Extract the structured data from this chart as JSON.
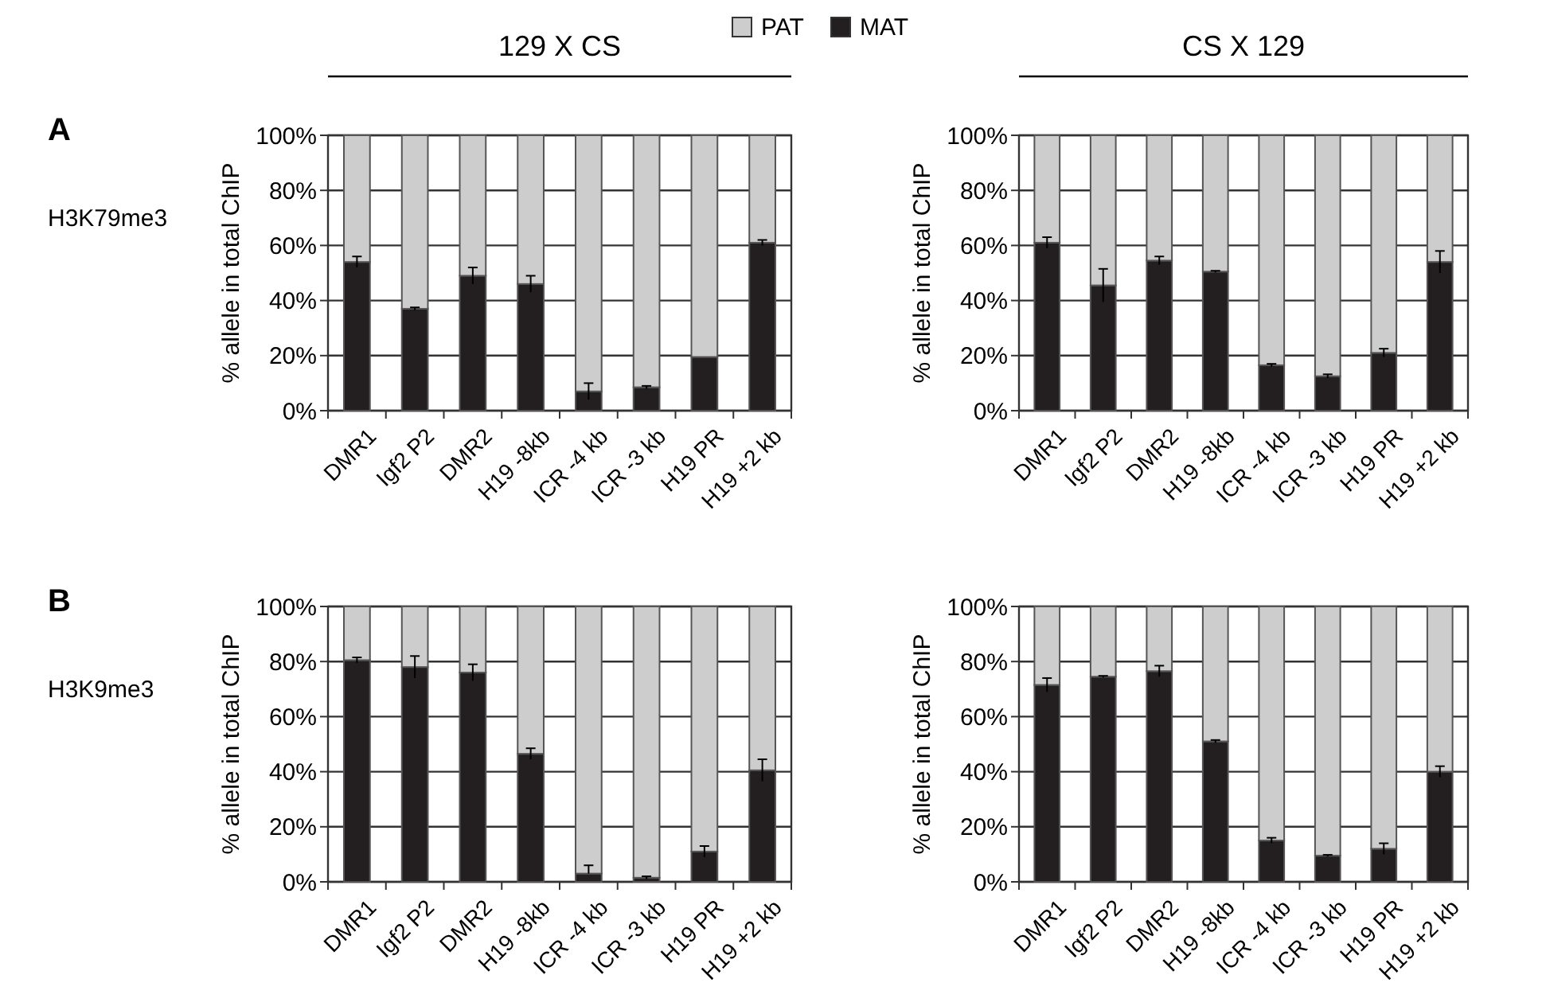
{
  "chart_data": [
    {
      "type": "bar",
      "title": "129 X CS",
      "ylabel": "% allele in total ChIP",
      "annotations": [
        "A",
        "H3K79me3"
      ],
      "categories": [
        "DMR1",
        "Igf2 P2",
        "DMR2",
        "H19 -8kb",
        "ICR -4 kb",
        "ICR -3 kb",
        "H19 PR",
        "H19 +2 kb"
      ],
      "stacked": true,
      "legend": "top",
      "grid": "y",
      "ylim": [
        0,
        100
      ],
      "yticks": [
        {
          "value": 0,
          "label": "0%"
        },
        {
          "value": 20,
          "label": "20%"
        },
        {
          "value": 40,
          "label": "40%"
        },
        {
          "value": 60,
          "label": "60%"
        },
        {
          "value": 80,
          "label": "80%"
        },
        {
          "value": 100,
          "label": "100%"
        }
      ],
      "series": [
        {
          "name": "MAT",
          "color": "#231f20",
          "values": [
            54,
            37,
            49,
            46,
            7,
            8.5,
            19.5,
            61
          ],
          "errors": [
            2,
            0.5,
            3,
            3,
            3,
            0.5,
            null,
            1
          ]
        },
        {
          "name": "PAT",
          "color": "#cdcdcd",
          "values": [
            46,
            63,
            51,
            54,
            93,
            91.5,
            80.5,
            39
          ]
        }
      ]
    },
    {
      "type": "bar",
      "title": "CS X 129",
      "ylabel": "% allele in total ChIP",
      "categories": [
        "DMR1",
        "Igf2 P2",
        "DMR2",
        "H19 -8kb",
        "ICR -4 kb",
        "ICR -3 kb",
        "H19 PR",
        "H19 +2 kb"
      ],
      "stacked": true,
      "grid": "y",
      "ylim": [
        0,
        100
      ],
      "yticks": [
        {
          "value": 0,
          "label": "0%"
        },
        {
          "value": 20,
          "label": "20%"
        },
        {
          "value": 40,
          "label": "40%"
        },
        {
          "value": 60,
          "label": "60%"
        },
        {
          "value": 80,
          "label": "80%"
        },
        {
          "value": 100,
          "label": "100%"
        }
      ],
      "series": [
        {
          "color": "#231f20",
          "values": [
            61,
            45.5,
            54.5,
            50.5,
            16.5,
            12.5,
            21,
            54
          ],
          "errors": [
            2,
            6,
            1.5,
            0.3,
            0.5,
            0.7,
            1.5,
            4
          ]
        },
        {
          "color": "#cdcdcd",
          "values": [
            39,
            54.5,
            45.5,
            49.5,
            83.5,
            87.5,
            79,
            46
          ]
        }
      ]
    },
    {
      "type": "bar",
      "ylabel": "% allele in total ChIP",
      "annotations": [
        "B",
        "H3K9me3"
      ],
      "categories": [
        "DMR1",
        "Igf2 P2",
        "DMR2",
        "H19 -8kb",
        "ICR -4 kb",
        "ICR -3 kb",
        "H19 PR",
        "H19 +2 kb"
      ],
      "stacked": true,
      "grid": "y",
      "ylim": [
        0,
        100
      ],
      "yticks": [
        {
          "value": 0,
          "label": "0%"
        },
        {
          "value": 20,
          "label": "20%"
        },
        {
          "value": 40,
          "label": "40%"
        },
        {
          "value": 60,
          "label": "60%"
        },
        {
          "value": 80,
          "label": "80%"
        },
        {
          "value": 100,
          "label": "100%"
        }
      ],
      "series": [
        {
          "color": "#231f20",
          "values": [
            80.5,
            78,
            76,
            46.5,
            3,
            1.5,
            11,
            40.5
          ],
          "errors": [
            1,
            4,
            3,
            2,
            [
              3,
              6
            ],
            0.5,
            2,
            4
          ]
        },
        {
          "color": "#cdcdcd",
          "values": [
            19.5,
            22,
            24,
            53.5,
            97,
            98.5,
            89,
            59.5
          ]
        }
      ]
    },
    {
      "type": "bar",
      "ylabel": "% allele in total ChIP",
      "categories": [
        "DMR1",
        "Igf2 P2",
        "DMR2",
        "H19 -8kb",
        "ICR -4 kb",
        "ICR -3 kb",
        "H19 PR",
        "H19 +2 kb"
      ],
      "stacked": true,
      "grid": "y",
      "ylim": [
        0,
        100
      ],
      "yticks": [
        {
          "value": 0,
          "label": "0%"
        },
        {
          "value": 20,
          "label": "20%"
        },
        {
          "value": 40,
          "label": "40%"
        },
        {
          "value": 60,
          "label": "60%"
        },
        {
          "value": 80,
          "label": "80%"
        },
        {
          "value": 100,
          "label": "100%"
        }
      ],
      "series": [
        {
          "color": "#231f20",
          "values": [
            71.5,
            74.5,
            76.5,
            51,
            15,
            9.5,
            12,
            40
          ],
          "errors": [
            2.5,
            0.3,
            2,
            0.5,
            1,
            0.3,
            2,
            2
          ]
        },
        {
          "color": "#cdcdcd",
          "values": [
            28.5,
            25.5,
            23.5,
            49,
            85,
            90.5,
            88,
            60
          ]
        }
      ]
    }
  ]
}
